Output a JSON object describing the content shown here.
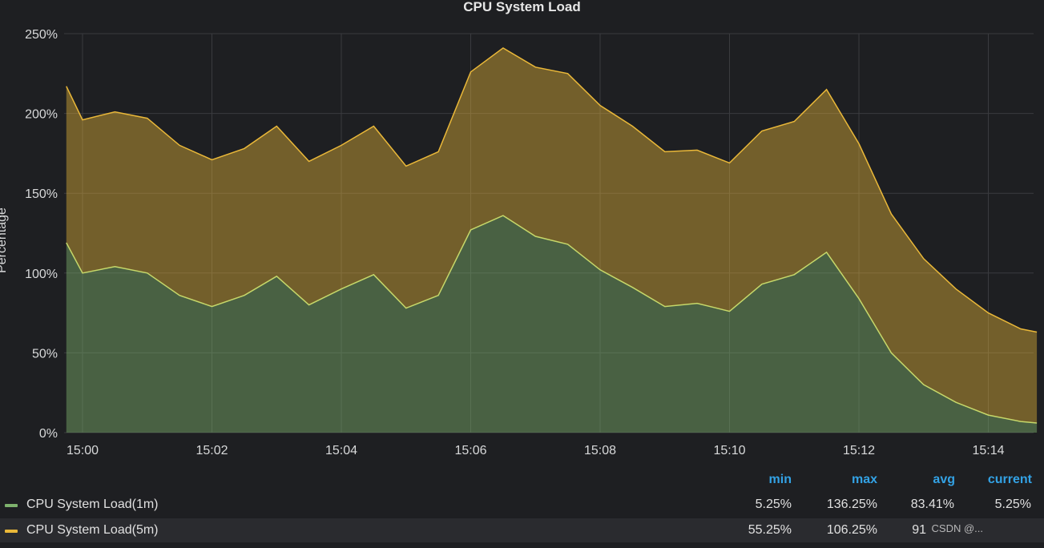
{
  "panel": {
    "title": "CPU System Load",
    "ylabel": "Percentage"
  },
  "chart_data": {
    "type": "area",
    "stacked": true,
    "title": "CPU System Load",
    "ylabel": "Percentage",
    "ylim": [
      0,
      250
    ],
    "y_ticks": [
      "0%",
      "50%",
      "100%",
      "150%",
      "200%",
      "250%"
    ],
    "x_ticks": [
      "15:00",
      "15:02",
      "15:04",
      "15:06",
      "15:08",
      "15:10",
      "15:12",
      "15:14"
    ],
    "x_unit": "minutes after 15:00",
    "x": [
      -0.25,
      0,
      0.5,
      1,
      1.5,
      2,
      2.5,
      3,
      3.5,
      4,
      4.5,
      5,
      5.5,
      6,
      6.5,
      7,
      7.5,
      8,
      8.5,
      9,
      9.5,
      10,
      10.5,
      11,
      11.5,
      12,
      12.5,
      13,
      13.5,
      14,
      14.5,
      14.75
    ],
    "series": [
      {
        "name": "CPU System Load(1m)",
        "color": "#7eb26d",
        "values": [
          119,
          100,
          104,
          100,
          86,
          79,
          86,
          98,
          80,
          90,
          99,
          78,
          86,
          127,
          136,
          123,
          118,
          102,
          91,
          79,
          81,
          76,
          93,
          99,
          113,
          84,
          50,
          30,
          19,
          11,
          7,
          6
        ]
      },
      {
        "name": "CPU System Load(5m)",
        "color": "#eab839",
        "values": [
          98,
          96,
          97,
          97,
          94,
          92,
          92,
          94,
          90,
          90,
          93,
          89,
          90,
          99,
          105,
          106,
          107,
          103,
          101,
          97,
          96,
          93,
          96,
          96,
          102,
          97,
          87,
          79,
          71,
          64,
          58,
          57
        ]
      }
    ],
    "grid": true,
    "legend_placement": "bottom"
  },
  "legend": {
    "columns": [
      "min",
      "max",
      "avg",
      "current"
    ],
    "rows": [
      {
        "name": "CPU System Load(1m)",
        "color": "#7eb26d",
        "min": "5.25%",
        "max": "136.25%",
        "avg": "83.41%",
        "current": "5.25%"
      },
      {
        "name": "CPU System Load(5m)",
        "color": "#eab839",
        "min": "55.25%",
        "max": "106.25%",
        "avg": "91",
        "current": ""
      }
    ]
  },
  "watermark": "CSDN @..."
}
